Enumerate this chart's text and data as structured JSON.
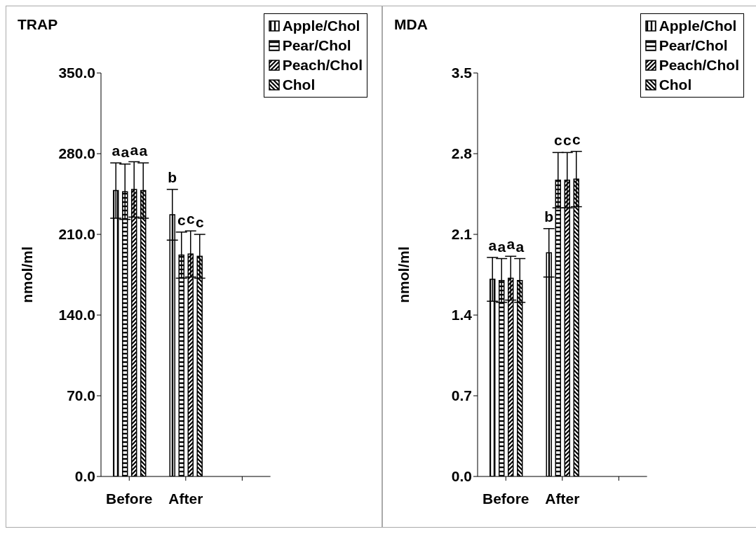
{
  "chart_data": [
    {
      "type": "bar",
      "title": "TRAP",
      "ylabel": "nmol/ml",
      "categories": [
        "Before",
        "After",
        null
      ],
      "ylim": [
        0,
        350
      ],
      "yticks": [
        {
          "value": 0,
          "label": "0.0"
        },
        {
          "value": 70,
          "label": "70.0"
        },
        {
          "value": 140,
          "label": "140.0"
        },
        {
          "value": 210,
          "label": "210.0"
        },
        {
          "value": 280,
          "label": "280.0"
        },
        {
          "value": 350,
          "label": "350.0"
        }
      ],
      "grid": false,
      "legend": "top right",
      "series": [
        {
          "name": "Apple/Chol",
          "color": "#000000",
          "values": [
            248,
            227,
            null
          ],
          "errors": [
            24,
            22,
            null
          ],
          "value_labels": [
            "a",
            "b",
            null
          ]
        },
        {
          "name": "Pear/Chol",
          "color": "#000000",
          "values": [
            247,
            192,
            null
          ],
          "errors": [
            24,
            20,
            null
          ],
          "value_labels": [
            "a",
            "c",
            null
          ]
        },
        {
          "name": "Peach/Chol",
          "color": "#000000",
          "values": [
            249,
            193,
            null
          ],
          "errors": [
            24,
            20,
            null
          ],
          "value_labels": [
            "a",
            "c",
            null
          ]
        },
        {
          "name": "Chol",
          "color": "#000000",
          "values": [
            248,
            191,
            null
          ],
          "errors": [
            24,
            19,
            null
          ],
          "value_labels": [
            "a",
            "c",
            null
          ]
        }
      ]
    },
    {
      "type": "bar",
      "title": "MDA",
      "ylabel": "nmol/ml",
      "categories": [
        "Before",
        "After",
        null
      ],
      "ylim": [
        0,
        3.5
      ],
      "yticks": [
        {
          "value": 0,
          "label": "0.0"
        },
        {
          "value": 0.7,
          "label": "0.7"
        },
        {
          "value": 1.4,
          "label": "1.4"
        },
        {
          "value": 2.1,
          "label": "2.1"
        },
        {
          "value": 2.8,
          "label": "2.8"
        },
        {
          "value": 3.5,
          "label": "3.5"
        }
      ],
      "grid": false,
      "legend": "top right",
      "series": [
        {
          "name": "Apple/Chol",
          "color": "#000000",
          "values": [
            1.71,
            1.94,
            null
          ],
          "errors": [
            0.19,
            0.21,
            null
          ],
          "value_labels": [
            "a",
            "b",
            null
          ]
        },
        {
          "name": "Pear/Chol",
          "color": "#000000",
          "values": [
            1.7,
            2.57,
            null
          ],
          "errors": [
            0.19,
            0.24,
            null
          ],
          "value_labels": [
            "a",
            "c",
            null
          ]
        },
        {
          "name": "Peach/Chol",
          "color": "#000000",
          "values": [
            1.72,
            2.57,
            null
          ],
          "errors": [
            0.19,
            0.24,
            null
          ],
          "value_labels": [
            "a",
            "c",
            null
          ]
        },
        {
          "name": "Chol",
          "color": "#000000",
          "values": [
            1.7,
            2.58,
            null
          ],
          "errors": [
            0.19,
            0.24,
            null
          ],
          "value_labels": [
            "a",
            "c",
            null
          ]
        }
      ]
    }
  ]
}
